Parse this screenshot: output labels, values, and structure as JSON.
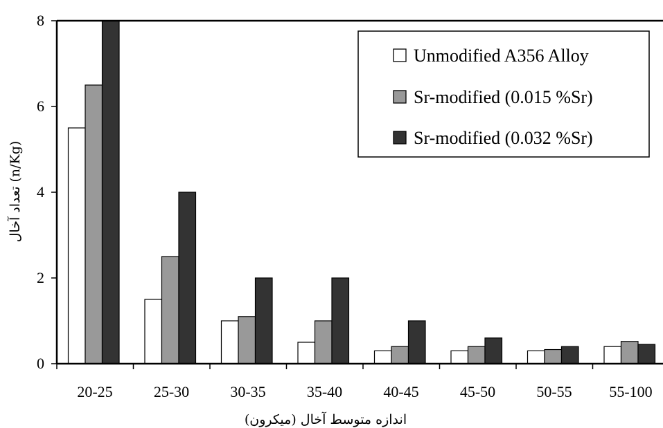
{
  "chart_data": {
    "type": "bar",
    "categories": [
      "20-25",
      "25-30",
      "30-35",
      "35-40",
      "40-45",
      "45-50",
      "50-55",
      "55-100"
    ],
    "series": [
      {
        "name": "Unmodified A356 Alloy",
        "values": [
          5.5,
          1.5,
          1.0,
          0.5,
          0.3,
          0.3,
          0.3,
          0.4
        ]
      },
      {
        "name": "Sr-modified (0.015 %Sr)",
        "values": [
          6.5,
          2.5,
          1.1,
          1.0,
          0.4,
          0.4,
          0.33,
          0.52
        ]
      },
      {
        "name": "Sr-modified (0.032 %Sr)",
        "values": [
          8.0,
          4.0,
          2.0,
          2.0,
          1.0,
          0.6,
          0.4,
          0.45
        ]
      }
    ],
    "colors": [
      "#ffffff",
      "#999999",
      "#333333"
    ],
    "xlabel": "اندازه متوسط آخال (میکرون)",
    "ylabel": "تعداد آخال (n/Kg)",
    "ylim": [
      0,
      8
    ],
    "yticks": [
      "0",
      "2",
      "4",
      "6",
      "8"
    ],
    "grid": false,
    "legend_position": "top-right"
  }
}
